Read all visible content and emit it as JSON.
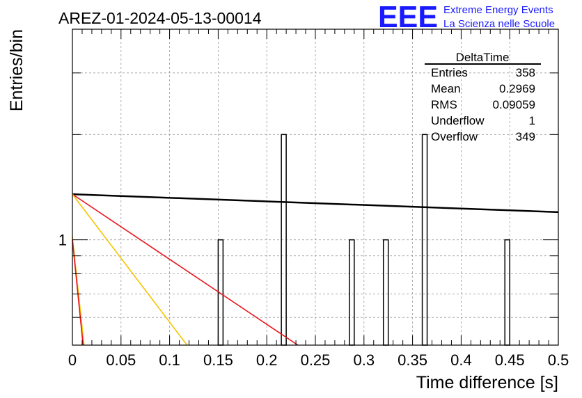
{
  "header": {
    "run_title": "AREZ-01-2024-05-13-00014",
    "logo_text": "EEE",
    "logo_line1": "Extreme Energy Events",
    "logo_line2": "La Scienza nelle Scuole"
  },
  "colors": {
    "logo": "#1a1aff",
    "bars": "#000000",
    "grid": "#9a9a9a",
    "line_black": "#000000",
    "line_red": "#e8141c",
    "line_yellow": "#f5c400"
  },
  "stats_box": {
    "title": "DeltaTime",
    "rows": [
      {
        "label": "Entries",
        "value": "358"
      },
      {
        "label": "Mean",
        "value": "0.2969"
      },
      {
        "label": "RMS",
        "value": "0.09059"
      },
      {
        "label": "Underflow",
        "value": "1"
      },
      {
        "label": "Overflow",
        "value": "349"
      }
    ]
  },
  "chart_data": {
    "type": "bar",
    "xlabel": "Time difference [s]",
    "ylabel": "Entries/bin",
    "xlim": [
      0,
      0.5
    ],
    "ylim": [
      0.5,
      4
    ],
    "yscale": "log",
    "grid": true,
    "x_ticks": [
      "0",
      "0.05",
      "0.1",
      "0.15",
      "0.2",
      "0.25",
      "0.3",
      "0.35",
      "0.4",
      "0.45",
      "0.5"
    ],
    "y_tick_labels": [
      {
        "value": 1,
        "label": "1"
      }
    ],
    "bin_width": 0.005,
    "bins": [
      {
        "x": 0.15,
        "y": 1
      },
      {
        "x": 0.215,
        "y": 2
      },
      {
        "x": 0.285,
        "y": 1
      },
      {
        "x": 0.32,
        "y": 1
      },
      {
        "x": 0.36,
        "y": 2
      },
      {
        "x": 0.445,
        "y": 1
      }
    ],
    "fit_lines": [
      {
        "color": "line_black",
        "points": [
          [
            0,
            1.35
          ],
          [
            0.5,
            1.2
          ]
        ]
      },
      {
        "color": "line_red",
        "points": [
          [
            0,
            1.35
          ],
          [
            0.232,
            0.5
          ]
        ]
      },
      {
        "color": "line_yellow",
        "points": [
          [
            0,
            1.35
          ],
          [
            0.118,
            0.5
          ]
        ]
      },
      {
        "color": "line_yellow",
        "points": [
          [
            0,
            1.02
          ],
          [
            0.012,
            0.5
          ]
        ]
      },
      {
        "color": "line_red",
        "points": [
          [
            0,
            1.0
          ],
          [
            0.011,
            0.5
          ]
        ]
      }
    ]
  }
}
